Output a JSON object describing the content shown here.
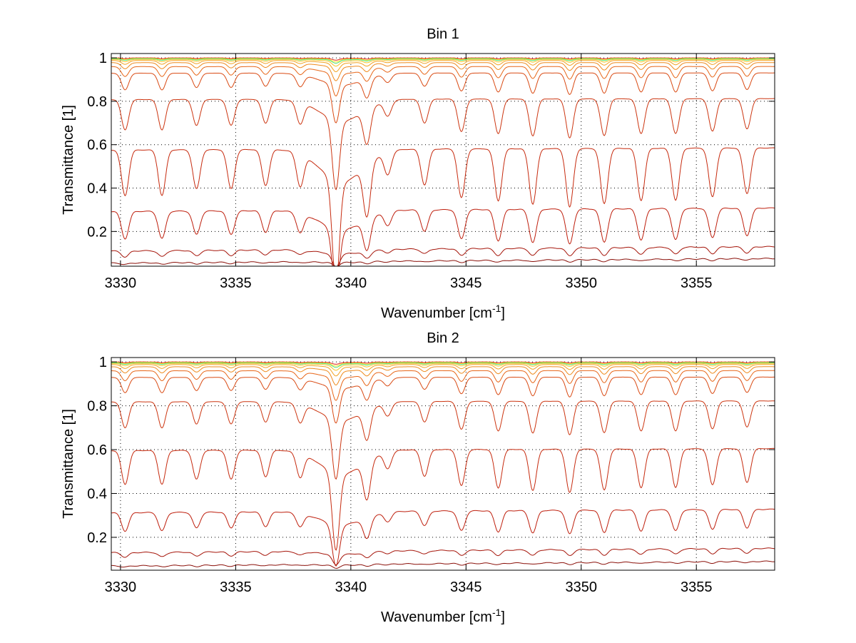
{
  "chart_data": [
    {
      "type": "line",
      "title": "Bin 1",
      "xlabel": "Wavenumber [cm",
      "xlabel_superscript": "-1",
      "xlabel_suffix": "]",
      "ylabel": "Transmittance [1]",
      "xlim": [
        3329.6,
        3358.4
      ],
      "ylim": [
        0.04,
        1.02
      ],
      "xticks": [
        3330,
        3335,
        3340,
        3345,
        3350,
        3355
      ],
      "yticks": [
        0.2,
        0.4,
        0.6,
        0.8,
        1
      ],
      "grid": true,
      "series": [
        {
          "color": "#dd1e12",
          "baseline": 1.0,
          "depth": 0.005
        },
        {
          "color": "#f7e52a",
          "baseline": 0.998,
          "depth": 0.008
        },
        {
          "color": "#4ce07c",
          "baseline": 0.996,
          "depth": 0.01
        },
        {
          "color": "#f6c425",
          "baseline": 0.993,
          "depth": 0.015
        },
        {
          "color": "#f2a21f",
          "baseline": 0.988,
          "depth": 0.025
        },
        {
          "color": "#ee8a1c",
          "baseline": 0.978,
          "depth": 0.04
        },
        {
          "color": "#e76618",
          "baseline": 0.96,
          "depth": 0.065
        },
        {
          "color": "#d94a13",
          "baseline": 0.93,
          "depth": 0.11
        },
        {
          "color": "#cc3510",
          "baseline": 0.81,
          "depth": 0.2
        },
        {
          "color": "#c62a0e",
          "baseline": 0.58,
          "depth": 0.3
        },
        {
          "color": "#be1e0c",
          "baseline": 0.3,
          "depth": 0.18
        },
        {
          "color": "#a51409",
          "baseline": 0.12,
          "depth": 0.04
        },
        {
          "color": "#8a0f08",
          "baseline": 0.065,
          "depth": 0.01
        }
      ]
    },
    {
      "type": "line",
      "title": "Bin 2",
      "xlabel": "Wavenumber [cm",
      "xlabel_superscript": "-1",
      "xlabel_suffix": "]",
      "ylabel": "Transmittance [1]",
      "xlim": [
        3329.6,
        3358.4
      ],
      "ylim": [
        0.05,
        1.02
      ],
      "xticks": [
        3330,
        3335,
        3340,
        3345,
        3350,
        3355
      ],
      "yticks": [
        0.2,
        0.4,
        0.6,
        0.8,
        1
      ],
      "grid": true,
      "series": [
        {
          "color": "#dd1e12",
          "baseline": 1.0,
          "depth": 0.005
        },
        {
          "color": "#f7e52a",
          "baseline": 0.998,
          "depth": 0.008
        },
        {
          "color": "#4ce07c",
          "baseline": 0.996,
          "depth": 0.01
        },
        {
          "color": "#f6c425",
          "baseline": 0.993,
          "depth": 0.015
        },
        {
          "color": "#f2a21f",
          "baseline": 0.988,
          "depth": 0.025
        },
        {
          "color": "#ee8a1c",
          "baseline": 0.978,
          "depth": 0.04
        },
        {
          "color": "#e76618",
          "baseline": 0.96,
          "depth": 0.065
        },
        {
          "color": "#d94a13",
          "baseline": 0.93,
          "depth": 0.1
        },
        {
          "color": "#cc3510",
          "baseline": 0.82,
          "depth": 0.17
        },
        {
          "color": "#c62a0e",
          "baseline": 0.6,
          "depth": 0.22
        },
        {
          "color": "#be1e0c",
          "baseline": 0.32,
          "depth": 0.12
        },
        {
          "color": "#a51409",
          "baseline": 0.14,
          "depth": 0.03
        },
        {
          "color": "#8a0f08",
          "baseline": 0.08,
          "depth": 0.008
        }
      ]
    }
  ]
}
